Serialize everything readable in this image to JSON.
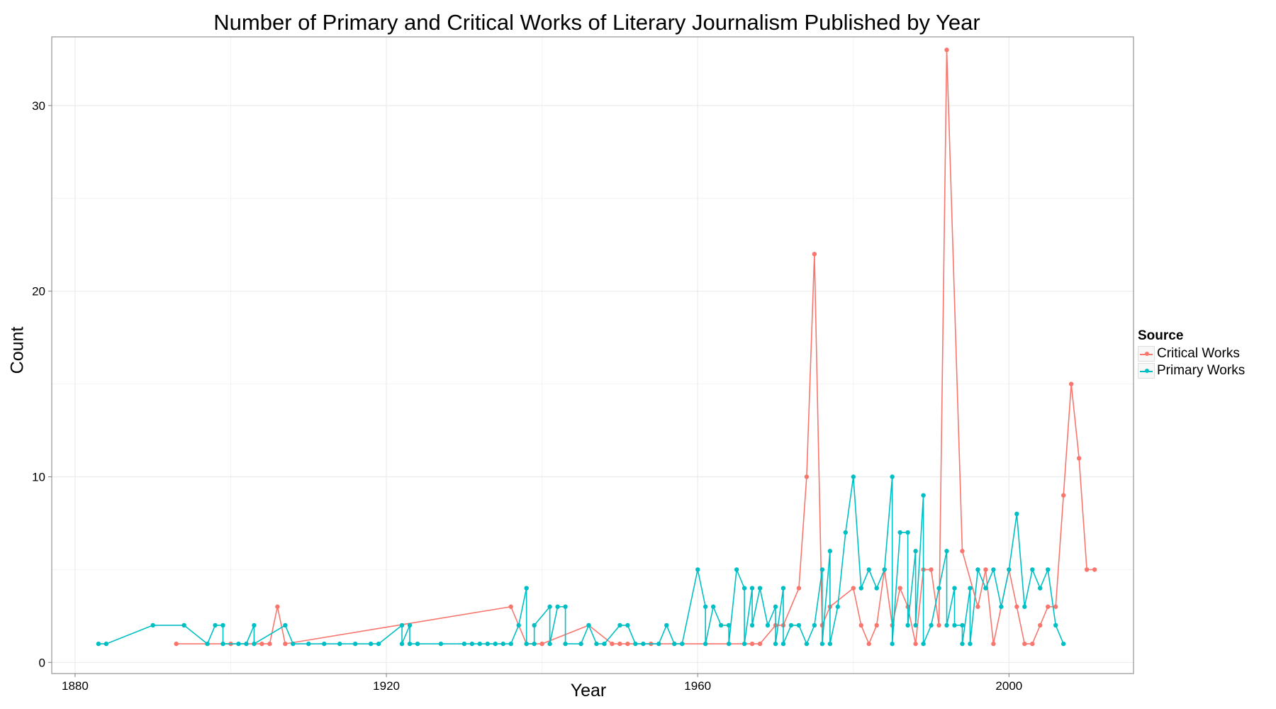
{
  "chart_data": {
    "type": "line",
    "title": "Number of Primary and Critical Works of Literary Journalism Published by Year",
    "xlabel": "Year",
    "ylabel": "Count",
    "xlim": [
      1877,
      2016
    ],
    "ylim": [
      -0.6,
      33.7
    ],
    "x_ticks": [
      1880,
      1920,
      1960,
      2000
    ],
    "y_ticks": [
      0,
      10,
      20,
      30
    ],
    "x_minor_ticks": [
      1900,
      1940,
      1980
    ],
    "y_minor_ticks": [
      5,
      15,
      25
    ],
    "grid": true,
    "legend": {
      "title": "Source",
      "placement": "right",
      "entries": [
        "Critical Works",
        "Primary Works"
      ]
    },
    "series": [
      {
        "name": "Critical Works",
        "color": "#F8766D",
        "points": [
          [
            1893,
            1
          ],
          [
            1900,
            1
          ],
          [
            1904,
            1
          ],
          [
            1905,
            1
          ],
          [
            1906,
            3
          ],
          [
            1907,
            1
          ],
          [
            1936,
            3
          ],
          [
            1938,
            1
          ],
          [
            1940,
            1
          ],
          [
            1946,
            2
          ],
          [
            1949,
            1
          ],
          [
            1950,
            1
          ],
          [
            1951,
            1
          ],
          [
            1954,
            1
          ],
          [
            1957,
            1
          ],
          [
            1967,
            1
          ],
          [
            1968,
            1
          ],
          [
            1970,
            2
          ],
          [
            1971,
            2
          ],
          [
            1973,
            4
          ],
          [
            1974,
            10
          ],
          [
            1975,
            22
          ],
          [
            1976,
            2
          ],
          [
            1977,
            3
          ],
          [
            1980,
            4
          ],
          [
            1981,
            2
          ],
          [
            1982,
            1
          ],
          [
            1983,
            2
          ],
          [
            1984,
            5
          ],
          [
            1985,
            2
          ],
          [
            1986,
            4
          ],
          [
            1987,
            3
          ],
          [
            1988,
            1
          ],
          [
            1989,
            5
          ],
          [
            1990,
            5
          ],
          [
            1991,
            2
          ],
          [
            1992,
            33
          ],
          [
            1994,
            6
          ],
          [
            1996,
            3
          ],
          [
            1997,
            5
          ],
          [
            1998,
            1
          ],
          [
            2000,
            5
          ],
          [
            2001,
            3
          ],
          [
            2002,
            1
          ],
          [
            2003,
            1
          ],
          [
            2004,
            2
          ],
          [
            2005,
            3
          ],
          [
            2006,
            3
          ],
          [
            2007,
            9
          ],
          [
            2008,
            15
          ],
          [
            2009,
            11
          ],
          [
            2010,
            5
          ],
          [
            2011,
            5
          ]
        ]
      },
      {
        "name": "Primary Works",
        "color": "#00BFC4",
        "points": [
          [
            1883,
            1
          ],
          [
            1884,
            1
          ],
          [
            1890,
            2
          ],
          [
            1894,
            2
          ],
          [
            1897,
            1
          ],
          [
            1898,
            2
          ],
          [
            1899,
            2
          ],
          [
            1899,
            1
          ],
          [
            1901,
            1
          ],
          [
            1902,
            1
          ],
          [
            1903,
            2
          ],
          [
            1903,
            1
          ],
          [
            1907,
            2
          ],
          [
            1908,
            1
          ],
          [
            1910,
            1
          ],
          [
            1912,
            1
          ],
          [
            1914,
            1
          ],
          [
            1916,
            1
          ],
          [
            1918,
            1
          ],
          [
            1919,
            1
          ],
          [
            1922,
            2
          ],
          [
            1922,
            1
          ],
          [
            1923,
            2
          ],
          [
            1923,
            1
          ],
          [
            1924,
            1
          ],
          [
            1927,
            1
          ],
          [
            1930,
            1
          ],
          [
            1931,
            1
          ],
          [
            1932,
            1
          ],
          [
            1933,
            1
          ],
          [
            1934,
            1
          ],
          [
            1935,
            1
          ],
          [
            1936,
            1
          ],
          [
            1937,
            2
          ],
          [
            1938,
            4
          ],
          [
            1938,
            1
          ],
          [
            1939,
            1
          ],
          [
            1939,
            2
          ],
          [
            1941,
            3
          ],
          [
            1941,
            1
          ],
          [
            1942,
            3
          ],
          [
            1943,
            3
          ],
          [
            1943,
            1
          ],
          [
            1945,
            1
          ],
          [
            1946,
            2
          ],
          [
            1947,
            1
          ],
          [
            1948,
            1
          ],
          [
            1950,
            2
          ],
          [
            1951,
            2
          ],
          [
            1952,
            1
          ],
          [
            1953,
            1
          ],
          [
            1955,
            1
          ],
          [
            1956,
            2
          ],
          [
            1957,
            1
          ],
          [
            1958,
            1
          ],
          [
            1960,
            5
          ],
          [
            1961,
            3
          ],
          [
            1961,
            1
          ],
          [
            1962,
            3
          ],
          [
            1963,
            2
          ],
          [
            1964,
            2
          ],
          [
            1964,
            1
          ],
          [
            1965,
            5
          ],
          [
            1966,
            4
          ],
          [
            1966,
            1
          ],
          [
            1967,
            4
          ],
          [
            1967,
            2
          ],
          [
            1968,
            4
          ],
          [
            1969,
            2
          ],
          [
            1970,
            3
          ],
          [
            1970,
            1
          ],
          [
            1971,
            4
          ],
          [
            1971,
            1
          ],
          [
            1972,
            2
          ],
          [
            1973,
            2
          ],
          [
            1974,
            1
          ],
          [
            1975,
            2
          ],
          [
            1976,
            5
          ],
          [
            1976,
            1
          ],
          [
            1977,
            6
          ],
          [
            1977,
            1
          ],
          [
            1978,
            3
          ],
          [
            1979,
            7
          ],
          [
            1980,
            10
          ],
          [
            1981,
            4
          ],
          [
            1982,
            5
          ],
          [
            1983,
            4
          ],
          [
            1984,
            5
          ],
          [
            1985,
            10
          ],
          [
            1985,
            1
          ],
          [
            1986,
            7
          ],
          [
            1987,
            7
          ],
          [
            1987,
            2
          ],
          [
            1988,
            6
          ],
          [
            1988,
            2
          ],
          [
            1989,
            9
          ],
          [
            1989,
            1
          ],
          [
            1990,
            2
          ],
          [
            1991,
            4
          ],
          [
            1992,
            6
          ],
          [
            1992,
            2
          ],
          [
            1993,
            4
          ],
          [
            1993,
            2
          ],
          [
            1994,
            2
          ],
          [
            1994,
            1
          ],
          [
            1995,
            4
          ],
          [
            1995,
            1
          ],
          [
            1996,
            5
          ],
          [
            1997,
            4
          ],
          [
            1998,
            5
          ],
          [
            1999,
            3
          ],
          [
            2000,
            5
          ],
          [
            2001,
            8
          ],
          [
            2002,
            3
          ],
          [
            2003,
            5
          ],
          [
            2004,
            4
          ],
          [
            2005,
            5
          ],
          [
            2006,
            2
          ],
          [
            2007,
            1
          ]
        ]
      }
    ]
  }
}
